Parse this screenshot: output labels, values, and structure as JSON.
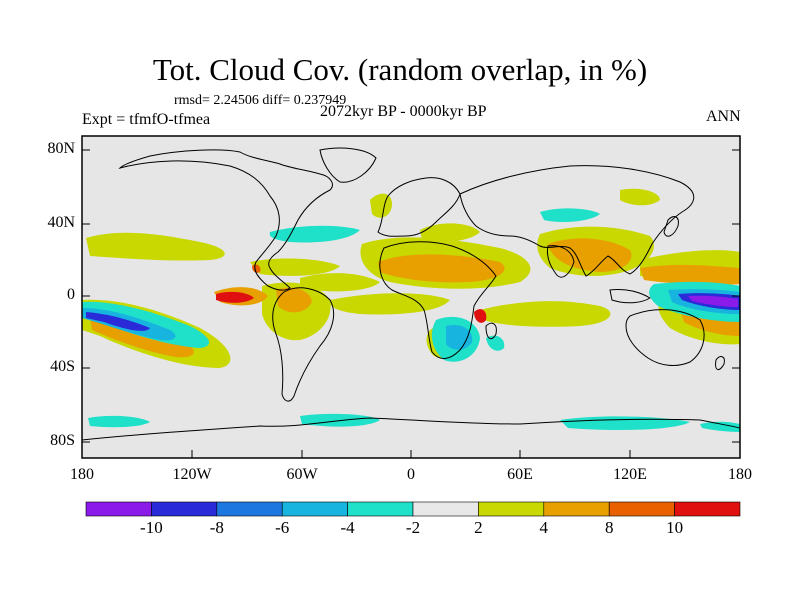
{
  "title": "Tot. Cloud Cov. (random overlap, in %)",
  "stats": "rmsd= 2.24506 diff= 0.237949",
  "experiment": "Expt = tfmfO-tfmea",
  "period": "2072kyr BP - 0000kyr BP",
  "season": "ANN",
  "y_ticks": [
    "80N",
    "40N",
    "0",
    "40S",
    "80S"
  ],
  "x_ticks": [
    "180",
    "120W",
    "60W",
    "0",
    "60E",
    "120E",
    "180"
  ],
  "colorbar": {
    "labels": [
      "-10",
      "-8",
      "-6",
      "-4",
      "-2",
      "2",
      "4",
      "8",
      "10"
    ],
    "colors": [
      "#8b1be8",
      "#2a2ad8",
      "#1c78e0",
      "#18b4e0",
      "#1fe0c8",
      "#e8e8e8",
      "#c8d800",
      "#e8a000",
      "#e86000",
      "#e01010"
    ]
  },
  "map": {
    "background": "#e6e6e6",
    "coast_color": "#000000"
  }
}
